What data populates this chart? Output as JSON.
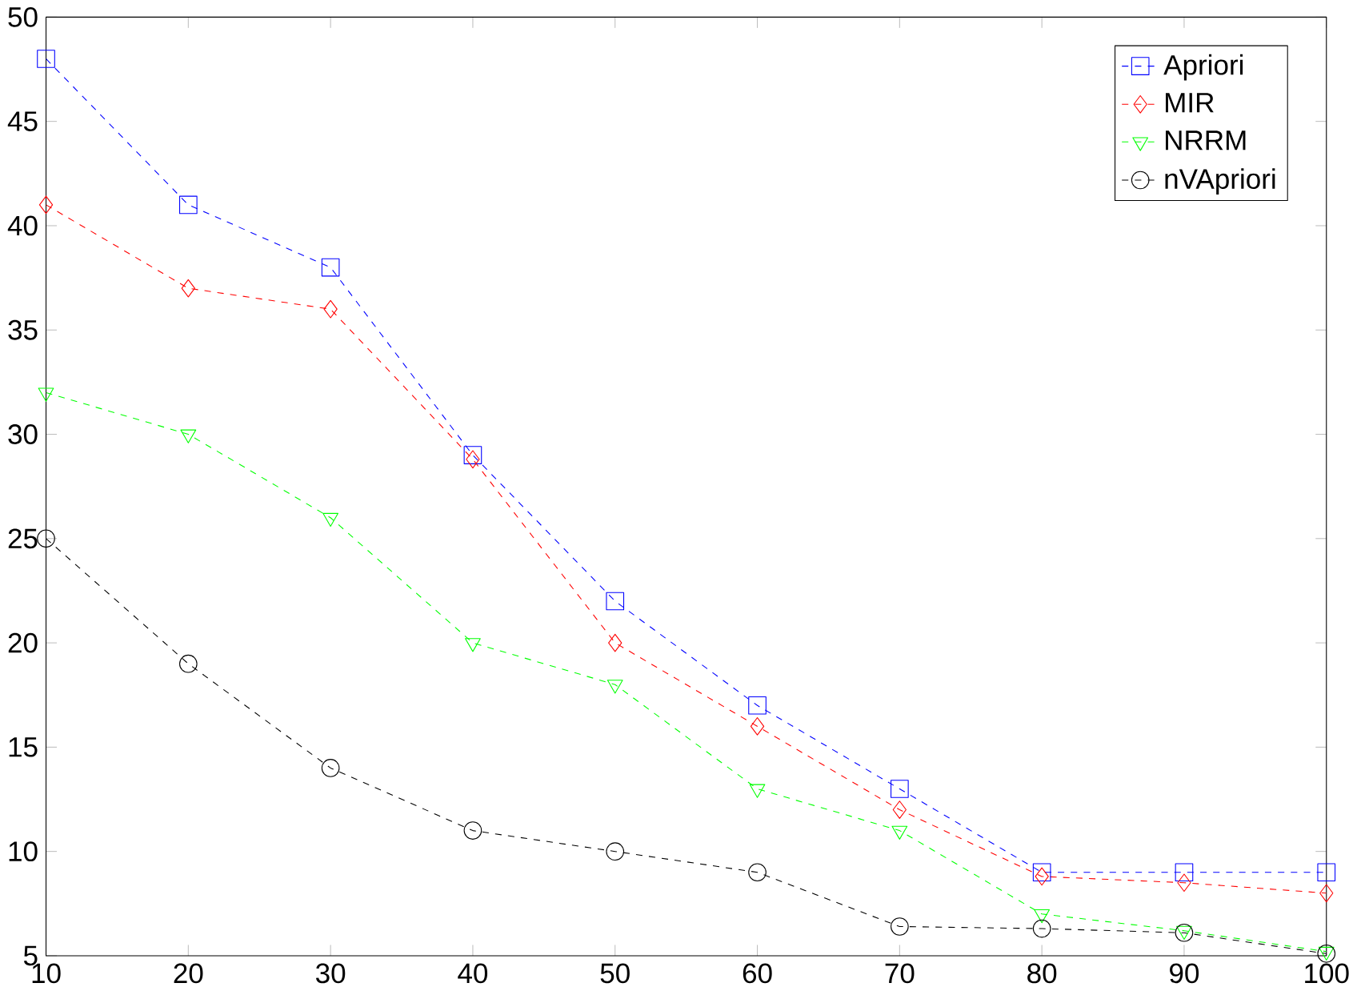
{
  "chart_data": {
    "type": "line",
    "x": [
      10,
      20,
      30,
      40,
      50,
      60,
      70,
      80,
      90,
      100
    ],
    "series": [
      {
        "name": "Apriori",
        "color": "#0000ff",
        "marker": "square",
        "values": [
          48,
          41,
          38,
          29,
          22,
          17,
          13,
          9,
          9,
          9
        ]
      },
      {
        "name": "MIR",
        "color": "#ff0000",
        "marker": "diamond",
        "values": [
          41,
          37,
          36,
          28.8,
          20,
          16,
          12,
          8.8,
          8.5,
          8
        ]
      },
      {
        "name": "NRRM",
        "color": "#00ff00",
        "marker": "triangle",
        "values": [
          32,
          30,
          26,
          20,
          18,
          13,
          11,
          7,
          6.2,
          5.2
        ]
      },
      {
        "name": "nVApriori",
        "color": "#000000",
        "marker": "circle",
        "values": [
          25,
          19,
          14,
          11,
          10,
          9,
          6.4,
          6.3,
          6.1,
          5.1
        ]
      }
    ],
    "xlim": [
      10,
      100
    ],
    "ylim": [
      5,
      50
    ],
    "xticks": [
      10,
      20,
      30,
      40,
      50,
      60,
      70,
      80,
      90,
      100
    ],
    "yticks": [
      5,
      10,
      15,
      20,
      25,
      30,
      35,
      40,
      45,
      50
    ],
    "line_style": "dashed",
    "grid": false,
    "legend": "top right"
  }
}
